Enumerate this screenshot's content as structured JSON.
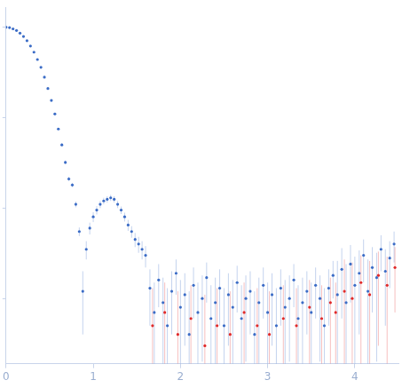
{
  "chart_data": {
    "type": "scatter",
    "log": "y",
    "grid": false,
    "tick_labels": "x",
    "xlim": [
      0,
      4.5
    ],
    "xticks": [
      0,
      1,
      2,
      3,
      4
    ],
    "ylim": [
      0.00019,
      1.67
    ],
    "yticks": [
      0.001,
      0.01,
      0.1,
      1
    ],
    "series": [
      {
        "color": "#3b6cc6",
        "marker": "circle",
        "x": [
          0,
          0.04,
          0.08,
          0.12,
          0.16,
          0.2,
          0.24,
          0.28,
          0.32,
          0.36,
          0.4,
          0.44,
          0.48,
          0.52,
          0.56,
          0.6,
          0.64,
          0.68,
          0.72,
          0.76,
          0.8,
          0.84,
          0.88,
          0.92,
          0.96,
          1,
          1.04,
          1.08,
          1.12,
          1.16,
          1.2,
          1.24,
          1.28,
          1.32,
          1.36,
          1.4,
          1.44,
          1.48,
          1.52,
          1.56,
          1.6,
          1.65,
          1.7,
          1.75,
          1.8,
          1.85,
          1.9,
          1.95,
          2,
          2.05,
          2.1,
          2.15,
          2.2,
          2.25,
          2.3,
          2.35,
          2.4,
          2.45,
          2.5,
          2.55,
          2.6,
          2.65,
          2.7,
          2.75,
          2.8,
          2.85,
          2.9,
          2.95,
          3,
          3.05,
          3.1,
          3.15,
          3.2,
          3.25,
          3.3,
          3.35,
          3.4,
          3.45,
          3.5,
          3.55,
          3.6,
          3.65,
          3.7,
          3.75,
          3.8,
          3.85,
          3.9,
          3.95,
          4,
          4.05,
          4.1,
          4.15,
          4.2,
          4.25,
          4.3,
          4.35,
          4.4,
          4.45
        ],
        "values": [
          1,
          0.99,
          0.96,
          0.92,
          0.86,
          0.79,
          0.71,
          0.62,
          0.53,
          0.44,
          0.36,
          0.28,
          0.21,
          0.155,
          0.11,
          0.075,
          0.05,
          0.032,
          0.021,
          0.018,
          0.011,
          0.0055,
          0.0012,
          0.0035,
          0.006,
          0.008,
          0.0095,
          0.011,
          0.012,
          0.0125,
          0.013,
          0.0125,
          0.011,
          0.0095,
          0.008,
          0.0065,
          0.0055,
          0.0045,
          0.004,
          0.0035,
          0.003,
          0.0013,
          0.0007,
          0.0016,
          0.0009,
          0.0005,
          0.0012,
          0.0019,
          0.0008,
          0.0011,
          0.0004,
          0.0014,
          0.0007,
          0.001,
          0.0017,
          0.0006,
          0.0009,
          0.0013,
          0.0005,
          0.0011,
          0.0008,
          0.0015,
          0.0006,
          0.001,
          0.0012,
          0.0004,
          0.0009,
          0.0014,
          0.0007,
          0.0011,
          0.0005,
          0.0013,
          0.0008,
          0.001,
          0.0016,
          0.0006,
          0.0009,
          0.0012,
          0.0007,
          0.0014,
          0.001,
          0.0005,
          0.0013,
          0.0018,
          0.0011,
          0.0021,
          0.0009,
          0.0024,
          0.0014,
          0.0019,
          0.003,
          0.0012,
          0.0022,
          0.0017,
          0.0035,
          0.002,
          0.0028,
          0.004
        ],
        "errors": [
          0.01,
          0.01,
          0.01,
          0.01,
          0.01,
          0.01,
          0.008,
          0.008,
          0.007,
          0.006,
          0.005,
          0.004,
          0.004,
          0.003,
          0.003,
          0.002,
          0.002,
          0.0015,
          0.0012,
          0.001,
          0.0008,
          0.0006,
          0.0008,
          0.0008,
          0.0009,
          0.001,
          0.001,
          0.001,
          0.001,
          0.001,
          0.001,
          0.001,
          0.001,
          0.0009,
          0.0009,
          0.0009,
          0.0008,
          0.0008,
          0.0008,
          0.0008,
          0.0008,
          0.0008,
          0.0008,
          0.0008,
          0.0008,
          0.0008,
          0.0008,
          0.0008,
          0.0008,
          0.0008,
          0.0008,
          0.0008,
          0.0008,
          0.0008,
          0.0008,
          0.0008,
          0.0008,
          0.0008,
          0.0008,
          0.0008,
          0.0008,
          0.0008,
          0.0008,
          0.0008,
          0.0008,
          0.0008,
          0.0008,
          0.0008,
          0.0008,
          0.0008,
          0.0008,
          0.0008,
          0.0008,
          0.0008,
          0.0008,
          0.0008,
          0.0008,
          0.0008,
          0.0008,
          0.0008,
          0.0008,
          0.0008,
          0.0008,
          0.0008,
          0.0015,
          0.0015,
          0.0015,
          0.0015,
          0.0015,
          0.0015,
          0.0015,
          0.0015,
          0.0015,
          0.0015,
          0.0015,
          0.0015,
          0.0015,
          0.0015
        ]
      },
      {
        "color": "#e02a2a",
        "marker": "circle",
        "x": [
          1.68,
          1.82,
          1.97,
          2.12,
          2.28,
          2.42,
          2.57,
          2.73,
          2.88,
          3.02,
          3.18,
          3.33,
          3.48,
          3.62,
          3.72,
          3.78,
          3.88,
          3.97,
          4.07,
          4.17,
          4.27,
          4.37,
          4.46
        ],
        "values": [
          0.0005,
          0.0007,
          0.0004,
          0.0006,
          0.0003,
          0.0005,
          0.0004,
          0.0007,
          0.0005,
          0.0004,
          0.0006,
          0.0005,
          0.0008,
          0.0006,
          0.0009,
          0.0007,
          0.0012,
          0.001,
          0.0015,
          0.0011,
          0.0018,
          0.0014,
          0.0022
        ],
        "errors": [
          0.0008,
          0.0008,
          0.0008,
          0.0008,
          0.0008,
          0.0008,
          0.0008,
          0.0008,
          0.0008,
          0.0008,
          0.0008,
          0.0008,
          0.0008,
          0.0008,
          0.0008,
          0.0008,
          0.0015,
          0.0015,
          0.0015,
          0.0015,
          0.0015,
          0.0015,
          0.0015
        ]
      }
    ]
  }
}
